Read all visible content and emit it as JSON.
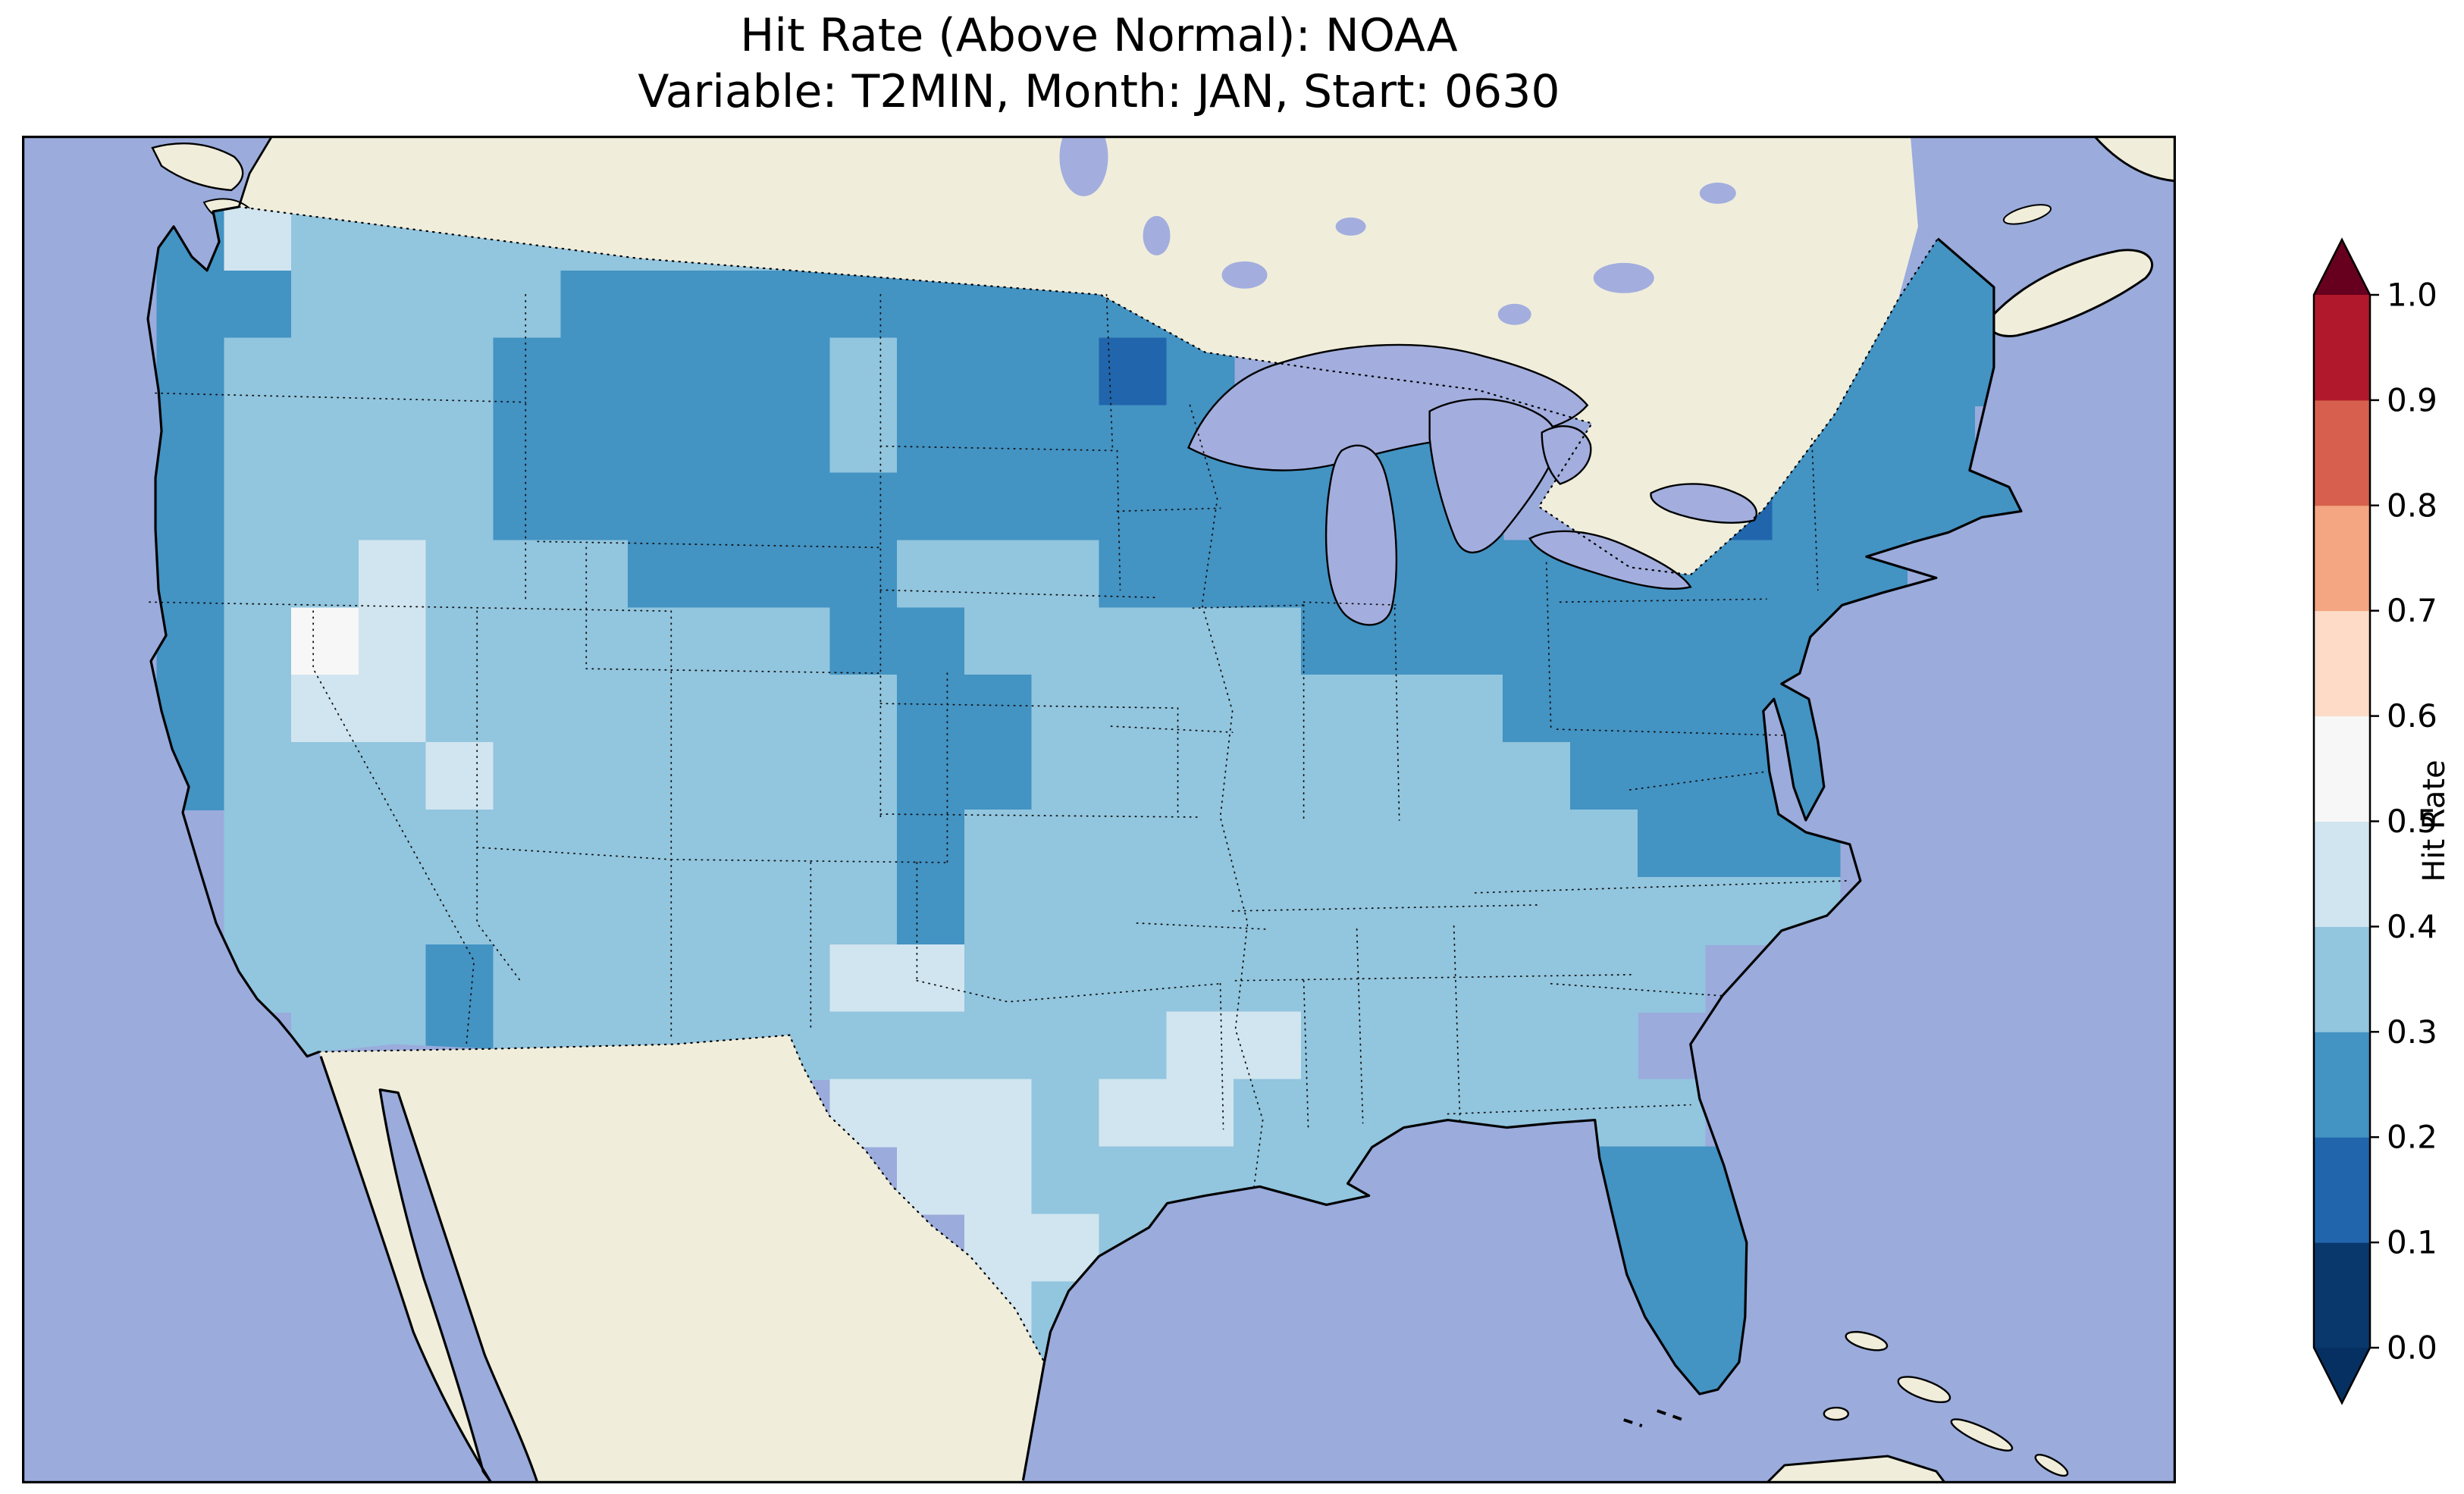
{
  "title": {
    "line1": "Hit Rate (Above Normal): NOAA",
    "line2": "Variable: T2MIN, Month: JAN, Start: 0630"
  },
  "map": {
    "ocean_color": "#9aabdc",
    "land_color": "#f0eedb",
    "lake_color": "#a3aede",
    "coastline_color": "#000000"
  },
  "colorbar": {
    "label": "Hit Rate",
    "ticks": [
      "0.0",
      "0.1",
      "0.2",
      "0.3",
      "0.4",
      "0.5",
      "0.6",
      "0.7",
      "0.8",
      "0.9",
      "1.0"
    ],
    "segment_colors_bottom_to_top": [
      "#09386d",
      "#2166ac",
      "#4393c3",
      "#92c5de",
      "#d1e5f0",
      "#f7f7f7",
      "#fddbc7",
      "#f4a582",
      "#d6604d",
      "#b2182b"
    ],
    "under_arrow_color": "#053061",
    "over_arrow_color": "#67001f",
    "outline_color": "#000000"
  },
  "chart_data": {
    "type": "heatmap",
    "title": "Hit Rate (Above Normal): NOAA",
    "subtitle": "Variable: T2MIN, Month: JAN, Start: 0630",
    "source": "NOAA",
    "variable": "T2MIN",
    "month": "JAN",
    "start": "0630",
    "metric": "Hit Rate (Above Normal)",
    "region": "Contiguous United States (CONUS)",
    "colorbar_label": "Hit Rate",
    "value_min": 0.0,
    "value_max": 1.0,
    "tick_step": 0.1,
    "colormap": "RdBu_r, discrete 0.1-wide bins, colorbar extended with arrows at both ends",
    "bin_edges": [
      0.0,
      0.1,
      0.2,
      0.3,
      0.4,
      0.5,
      0.6,
      0.7,
      0.8,
      0.9,
      1.0
    ],
    "bin_colors": [
      "#09386d",
      "#2166ac",
      "#4393c3",
      "#92c5de",
      "#d1e5f0",
      "#f7f7f7",
      "#fddbc7",
      "#f4a582",
      "#d6604d",
      "#b2182b"
    ],
    "observed_range_note": "Mapped hit-rate values span roughly 0.1 to 0.6; no warm (red, >0.6) areas appear on the map",
    "grid": {
      "cols": 32,
      "rows": 20,
      "cell_encoding": "Each character is one grid cell over the map axes (row-major, top-left origin). Digit d means hit-rate bin [d/10,(d+1)/10); '.' means outside CONUS. Hand-digitized approximation of the plotted field.",
      "rows_data": [
        "................................",
        "..243333333322..............2...",
        "..2233332222222222........2222..",
        "..2333322222322212........2222..",
        "..2333322222322222222....2222...",
        "..23333222222222222222..212222..",
        "..23343332222333222222222222....",
        "..2354333333223333322222222.....",
        "..2344333333322333333322222.....",
        "..2333433333322333333332222.....",
        "...333333333323333333333222.....",
        "...333333333323333333333333.....",
        "...3332333334433333333333.......",
        "....33233333333334433333........",
        "............4443443333333.......",
        ".............44333333.3222......",
        "..............443......222......",
        "..............43.......222......",
        "...............3.......422......",
        "................................"
      ]
    },
    "regional_summary": [
      {
        "region": "Northern Plains (MT, ND, SD), Upper Midwest (MN, WI, MI), Great Lakes, Northeast (NY, PA, New England), Mid-Atlantic (MD, VA)",
        "hit_rate_range": "0.2-0.3"
      },
      {
        "region": "Local minima in northwest Minnesota and central New York",
        "hit_rate_range": "0.1-0.2"
      },
      {
        "region": "Most of the West, central and southern CONUS",
        "hit_rate_range": "0.3-0.4"
      },
      {
        "region": "Pale patches in Nevada/Utah/Oregon, Texas panhandle, central-south Texas, Arkansas",
        "hit_rate_range": "0.4-0.6"
      },
      {
        "region": "Florida peninsula",
        "hit_rate_range": "0.2-0.3"
      }
    ]
  }
}
